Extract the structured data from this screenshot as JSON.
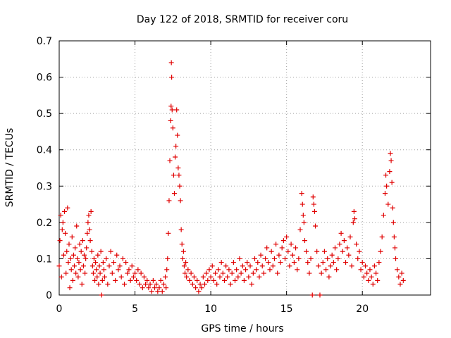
{
  "chart_data": {
    "type": "scatter",
    "title": "Day 122 of 2018, SRMTID for receiver coru",
    "xlabel": "GPS time / hours",
    "ylabel": "SRMTID / TECUs",
    "xlim": [
      0,
      24.5
    ],
    "ylim": [
      0,
      0.7
    ],
    "xticks": [
      "0",
      "5",
      "10",
      "15",
      "20"
    ],
    "yticks": [
      "0",
      "0.1",
      "0.2",
      "0.3",
      "0.4",
      "0.5",
      "0.6",
      "0.7"
    ],
    "grid": true,
    "marker": "+",
    "color": "#e00000",
    "series": [
      {
        "name": "SRMTID",
        "points": [
          [
            0.0,
            0.08
          ],
          [
            0.05,
            0.15
          ],
          [
            0.1,
            0.22
          ],
          [
            0.15,
            0.05
          ],
          [
            0.2,
            0.18
          ],
          [
            0.25,
            0.2
          ],
          [
            0.3,
            0.11
          ],
          [
            0.35,
            0.23
          ],
          [
            0.4,
            0.17
          ],
          [
            0.45,
            0.06
          ],
          [
            0.5,
            0.12
          ],
          [
            0.55,
            0.24
          ],
          [
            0.6,
            0.09
          ],
          [
            0.65,
            0.14
          ],
          [
            0.7,
            0.02
          ],
          [
            0.75,
            0.1
          ],
          [
            0.8,
            0.07
          ],
          [
            0.85,
            0.16
          ],
          [
            0.9,
            0.04
          ],
          [
            0.95,
            0.11
          ],
          [
            1.0,
            0.08
          ],
          [
            1.05,
            0.13
          ],
          [
            1.1,
            0.06
          ],
          [
            1.15,
            0.19
          ],
          [
            1.2,
            0.1
          ],
          [
            1.25,
            0.05
          ],
          [
            1.3,
            0.09
          ],
          [
            1.35,
            0.14
          ],
          [
            1.4,
            0.07
          ],
          [
            1.45,
            0.12
          ],
          [
            1.5,
            0.03
          ],
          [
            1.55,
            0.15
          ],
          [
            1.6,
            0.08
          ],
          [
            1.65,
            0.11
          ],
          [
            1.7,
            0.06
          ],
          [
            1.75,
            0.1
          ],
          [
            1.8,
            0.13
          ],
          [
            1.85,
            0.17
          ],
          [
            1.9,
            0.2
          ],
          [
            1.95,
            0.22
          ],
          [
            2.0,
            0.18
          ],
          [
            2.05,
            0.15
          ],
          [
            2.1,
            0.23
          ],
          [
            2.15,
            0.12
          ],
          [
            2.2,
            0.08
          ],
          [
            2.25,
            0.06
          ],
          [
            2.3,
            0.1
          ],
          [
            2.35,
            0.04
          ],
          [
            2.4,
            0.09
          ],
          [
            2.45,
            0.07
          ],
          [
            2.5,
            0.05
          ],
          [
            2.55,
            0.11
          ],
          [
            2.6,
            0.03
          ],
          [
            2.65,
            0.08
          ],
          [
            2.7,
            0.06
          ],
          [
            2.75,
            0.12
          ],
          [
            2.8,
            0.0
          ],
          [
            2.85,
            0.04
          ],
          [
            2.9,
            0.09
          ],
          [
            2.95,
            0.07
          ],
          [
            3.0,
            0.05
          ],
          [
            3.1,
            0.1
          ],
          [
            3.2,
            0.03
          ],
          [
            3.3,
            0.08
          ],
          [
            3.4,
            0.12
          ],
          [
            3.5,
            0.06
          ],
          [
            3.6,
            0.09
          ],
          [
            3.7,
            0.04
          ],
          [
            3.8,
            0.11
          ],
          [
            3.9,
            0.07
          ],
          [
            4.0,
            0.08
          ],
          [
            4.1,
            0.05
          ],
          [
            4.2,
            0.1
          ],
          [
            4.3,
            0.03
          ],
          [
            4.4,
            0.09
          ],
          [
            4.5,
            0.06
          ],
          [
            4.6,
            0.07
          ],
          [
            4.7,
            0.04
          ],
          [
            4.8,
            0.08
          ],
          [
            4.9,
            0.05
          ],
          [
            5.0,
            0.06
          ],
          [
            5.1,
            0.04
          ],
          [
            5.2,
            0.07
          ],
          [
            5.3,
            0.03
          ],
          [
            5.4,
            0.06
          ],
          [
            5.5,
            0.02
          ],
          [
            5.6,
            0.05
          ],
          [
            5.7,
            0.03
          ],
          [
            5.8,
            0.04
          ],
          [
            5.9,
            0.02
          ],
          [
            6.0,
            0.03
          ],
          [
            6.1,
            0.01
          ],
          [
            6.2,
            0.04
          ],
          [
            6.3,
            0.02
          ],
          [
            6.4,
            0.03
          ],
          [
            6.5,
            0.01
          ],
          [
            6.6,
            0.02
          ],
          [
            6.7,
            0.04
          ],
          [
            6.8,
            0.01
          ],
          [
            6.9,
            0.03
          ],
          [
            7.0,
            0.05
          ],
          [
            7.05,
            0.02
          ],
          [
            7.1,
            0.07
          ],
          [
            7.15,
            0.1
          ],
          [
            7.2,
            0.17
          ],
          [
            7.25,
            0.26
          ],
          [
            7.3,
            0.37
          ],
          [
            7.35,
            0.48
          ],
          [
            7.38,
            0.52
          ],
          [
            7.4,
            0.64
          ],
          [
            7.42,
            0.6
          ],
          [
            7.45,
            0.51
          ],
          [
            7.5,
            0.46
          ],
          [
            7.55,
            0.33
          ],
          [
            7.6,
            0.28
          ],
          [
            7.65,
            0.38
          ],
          [
            7.7,
            0.41
          ],
          [
            7.75,
            0.51
          ],
          [
            7.8,
            0.44
          ],
          [
            7.85,
            0.35
          ],
          [
            7.9,
            0.33
          ],
          [
            7.95,
            0.3
          ],
          [
            8.0,
            0.26
          ],
          [
            8.05,
            0.18
          ],
          [
            8.1,
            0.14
          ],
          [
            8.15,
            0.1
          ],
          [
            8.2,
            0.12
          ],
          [
            8.25,
            0.08
          ],
          [
            8.3,
            0.06
          ],
          [
            8.35,
            0.09
          ],
          [
            8.4,
            0.05
          ],
          [
            8.5,
            0.07
          ],
          [
            8.6,
            0.04
          ],
          [
            8.7,
            0.06
          ],
          [
            8.8,
            0.03
          ],
          [
            8.9,
            0.05
          ],
          [
            9.0,
            0.02
          ],
          [
            9.1,
            0.04
          ],
          [
            9.2,
            0.01
          ],
          [
            9.3,
            0.03
          ],
          [
            9.4,
            0.02
          ],
          [
            9.5,
            0.05
          ],
          [
            9.6,
            0.03
          ],
          [
            9.7,
            0.06
          ],
          [
            9.8,
            0.04
          ],
          [
            9.9,
            0.07
          ],
          [
            10.0,
            0.05
          ],
          [
            10.1,
            0.08
          ],
          [
            10.2,
            0.04
          ],
          [
            10.3,
            0.06
          ],
          [
            10.4,
            0.03
          ],
          [
            10.5,
            0.07
          ],
          [
            10.6,
            0.05
          ],
          [
            10.7,
            0.09
          ],
          [
            10.8,
            0.06
          ],
          [
            10.9,
            0.04
          ],
          [
            11.0,
            0.08
          ],
          [
            11.1,
            0.05
          ],
          [
            11.2,
            0.07
          ],
          [
            11.3,
            0.03
          ],
          [
            11.4,
            0.06
          ],
          [
            11.5,
            0.09
          ],
          [
            11.6,
            0.04
          ],
          [
            11.7,
            0.07
          ],
          [
            11.8,
            0.05
          ],
          [
            11.9,
            0.1
          ],
          [
            12.0,
            0.06
          ],
          [
            12.1,
            0.08
          ],
          [
            12.2,
            0.04
          ],
          [
            12.3,
            0.07
          ],
          [
            12.4,
            0.09
          ],
          [
            12.5,
            0.05
          ],
          [
            12.6,
            0.08
          ],
          [
            12.7,
            0.03
          ],
          [
            12.8,
            0.06
          ],
          [
            12.9,
            0.1
          ],
          [
            13.0,
            0.07
          ],
          [
            13.1,
            0.09
          ],
          [
            13.2,
            0.05
          ],
          [
            13.3,
            0.11
          ],
          [
            13.4,
            0.08
          ],
          [
            13.5,
            0.06
          ],
          [
            13.6,
            0.1
          ],
          [
            13.7,
            0.13
          ],
          [
            13.8,
            0.09
          ],
          [
            13.9,
            0.07
          ],
          [
            14.0,
            0.12
          ],
          [
            14.1,
            0.08
          ],
          [
            14.2,
            0.1
          ],
          [
            14.3,
            0.14
          ],
          [
            14.4,
            0.06
          ],
          [
            14.5,
            0.11
          ],
          [
            14.6,
            0.09
          ],
          [
            14.7,
            0.13
          ],
          [
            14.8,
            0.15
          ],
          [
            14.9,
            0.1
          ],
          [
            15.0,
            0.16
          ],
          [
            15.1,
            0.12
          ],
          [
            15.2,
            0.08
          ],
          [
            15.3,
            0.14
          ],
          [
            15.4,
            0.11
          ],
          [
            15.5,
            0.09
          ],
          [
            15.6,
            0.13
          ],
          [
            15.7,
            0.07
          ],
          [
            15.8,
            0.1
          ],
          [
            15.9,
            0.18
          ],
          [
            16.0,
            0.28
          ],
          [
            16.05,
            0.25
          ],
          [
            16.1,
            0.22
          ],
          [
            16.15,
            0.2
          ],
          [
            16.2,
            0.15
          ],
          [
            16.3,
            0.12
          ],
          [
            16.4,
            0.09
          ],
          [
            16.5,
            0.06
          ],
          [
            16.6,
            0.1
          ],
          [
            16.7,
            0.0
          ],
          [
            16.75,
            0.27
          ],
          [
            16.8,
            0.25
          ],
          [
            16.85,
            0.23
          ],
          [
            16.9,
            0.19
          ],
          [
            17.0,
            0.12
          ],
          [
            17.1,
            0.08
          ],
          [
            17.2,
            0.0
          ],
          [
            17.3,
            0.06
          ],
          [
            17.4,
            0.09
          ],
          [
            17.5,
            0.12
          ],
          [
            17.6,
            0.07
          ],
          [
            17.7,
            0.1
          ],
          [
            17.8,
            0.05
          ],
          [
            17.9,
            0.08
          ],
          [
            18.0,
            0.11
          ],
          [
            18.1,
            0.09
          ],
          [
            18.2,
            0.13
          ],
          [
            18.3,
            0.07
          ],
          [
            18.4,
            0.1
          ],
          [
            18.5,
            0.14
          ],
          [
            18.6,
            0.17
          ],
          [
            18.7,
            0.12
          ],
          [
            18.8,
            0.15
          ],
          [
            18.9,
            0.09
          ],
          [
            19.0,
            0.13
          ],
          [
            19.1,
            0.11
          ],
          [
            19.2,
            0.16
          ],
          [
            19.3,
            0.08
          ],
          [
            19.4,
            0.2
          ],
          [
            19.45,
            0.23
          ],
          [
            19.5,
            0.21
          ],
          [
            19.6,
            0.14
          ],
          [
            19.7,
            0.1
          ],
          [
            19.8,
            0.12
          ],
          [
            19.9,
            0.07
          ],
          [
            20.0,
            0.09
          ],
          [
            20.1,
            0.05
          ],
          [
            20.2,
            0.08
          ],
          [
            20.3,
            0.06
          ],
          [
            20.4,
            0.04
          ],
          [
            20.5,
            0.07
          ],
          [
            20.6,
            0.05
          ],
          [
            20.7,
            0.03
          ],
          [
            20.8,
            0.08
          ],
          [
            20.9,
            0.06
          ],
          [
            21.0,
            0.04
          ],
          [
            21.1,
            0.09
          ],
          [
            21.2,
            0.12
          ],
          [
            21.3,
            0.16
          ],
          [
            21.4,
            0.22
          ],
          [
            21.5,
            0.28
          ],
          [
            21.55,
            0.33
          ],
          [
            21.6,
            0.3
          ],
          [
            21.7,
            0.25
          ],
          [
            21.8,
            0.34
          ],
          [
            21.85,
            0.39
          ],
          [
            21.9,
            0.37
          ],
          [
            21.95,
            0.31
          ],
          [
            22.0,
            0.24
          ],
          [
            22.05,
            0.2
          ],
          [
            22.1,
            0.16
          ],
          [
            22.15,
            0.13
          ],
          [
            22.2,
            0.1
          ],
          [
            22.3,
            0.07
          ],
          [
            22.4,
            0.05
          ],
          [
            22.5,
            0.03
          ],
          [
            22.6,
            0.06
          ],
          [
            22.7,
            0.04
          ]
        ]
      }
    ]
  }
}
